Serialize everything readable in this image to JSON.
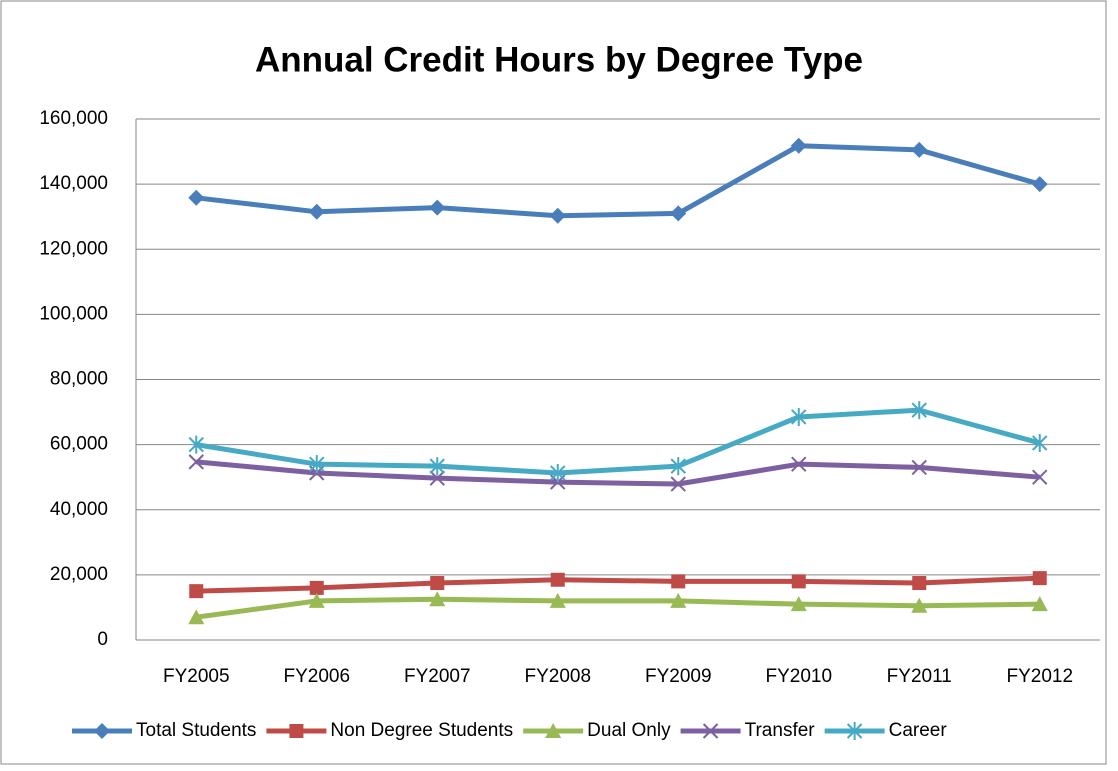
{
  "chart_data": {
    "type": "line",
    "title": "Annual Credit Hours by Degree Type",
    "categories": [
      "FY2005",
      "FY2006",
      "FY2007",
      "FY2008",
      "FY2009",
      "FY2010",
      "FY2011",
      "FY2012"
    ],
    "series": [
      {
        "name": "Total Students",
        "color": "#4a7ebb",
        "marker": "diamond",
        "values": [
          135800,
          131500,
          132800,
          130300,
          131000,
          151800,
          150500,
          140000
        ]
      },
      {
        "name": "Non Degree Students",
        "color": "#be4b48",
        "marker": "square",
        "values": [
          15000,
          16000,
          17500,
          18500,
          18000,
          18000,
          17500,
          19000
        ]
      },
      {
        "name": "Dual Only",
        "color": "#98b954",
        "marker": "triangle",
        "values": [
          7000,
          12000,
          12500,
          12000,
          12000,
          11000,
          10500,
          11000
        ]
      },
      {
        "name": "Transfer",
        "color": "#7d60a0",
        "marker": "x",
        "values": [
          54700,
          51300,
          49700,
          48500,
          47900,
          54000,
          53000,
          50000
        ]
      },
      {
        "name": "Career",
        "color": "#46aac5",
        "marker": "star",
        "values": [
          60000,
          54000,
          53400,
          51300,
          53400,
          68500,
          70600,
          60500
        ]
      }
    ],
    "ylim": [
      0,
      160000
    ],
    "yticks": [
      0,
      {
        "value": 20000,
        "label": "20,000"
      },
      {
        "value": 40000,
        "label": "40,000"
      },
      {
        "value": 60000,
        "label": "60,000"
      },
      {
        "value": 80000,
        "label": "80,000"
      },
      {
        "value": 100000,
        "label": "100,000"
      },
      {
        "value": 120000,
        "label": "120,000"
      },
      {
        "value": 140000,
        "label": "140,000"
      },
      {
        "value": 160000,
        "label": "160,000"
      }
    ],
    "grid": true,
    "legend": "bottom"
  }
}
